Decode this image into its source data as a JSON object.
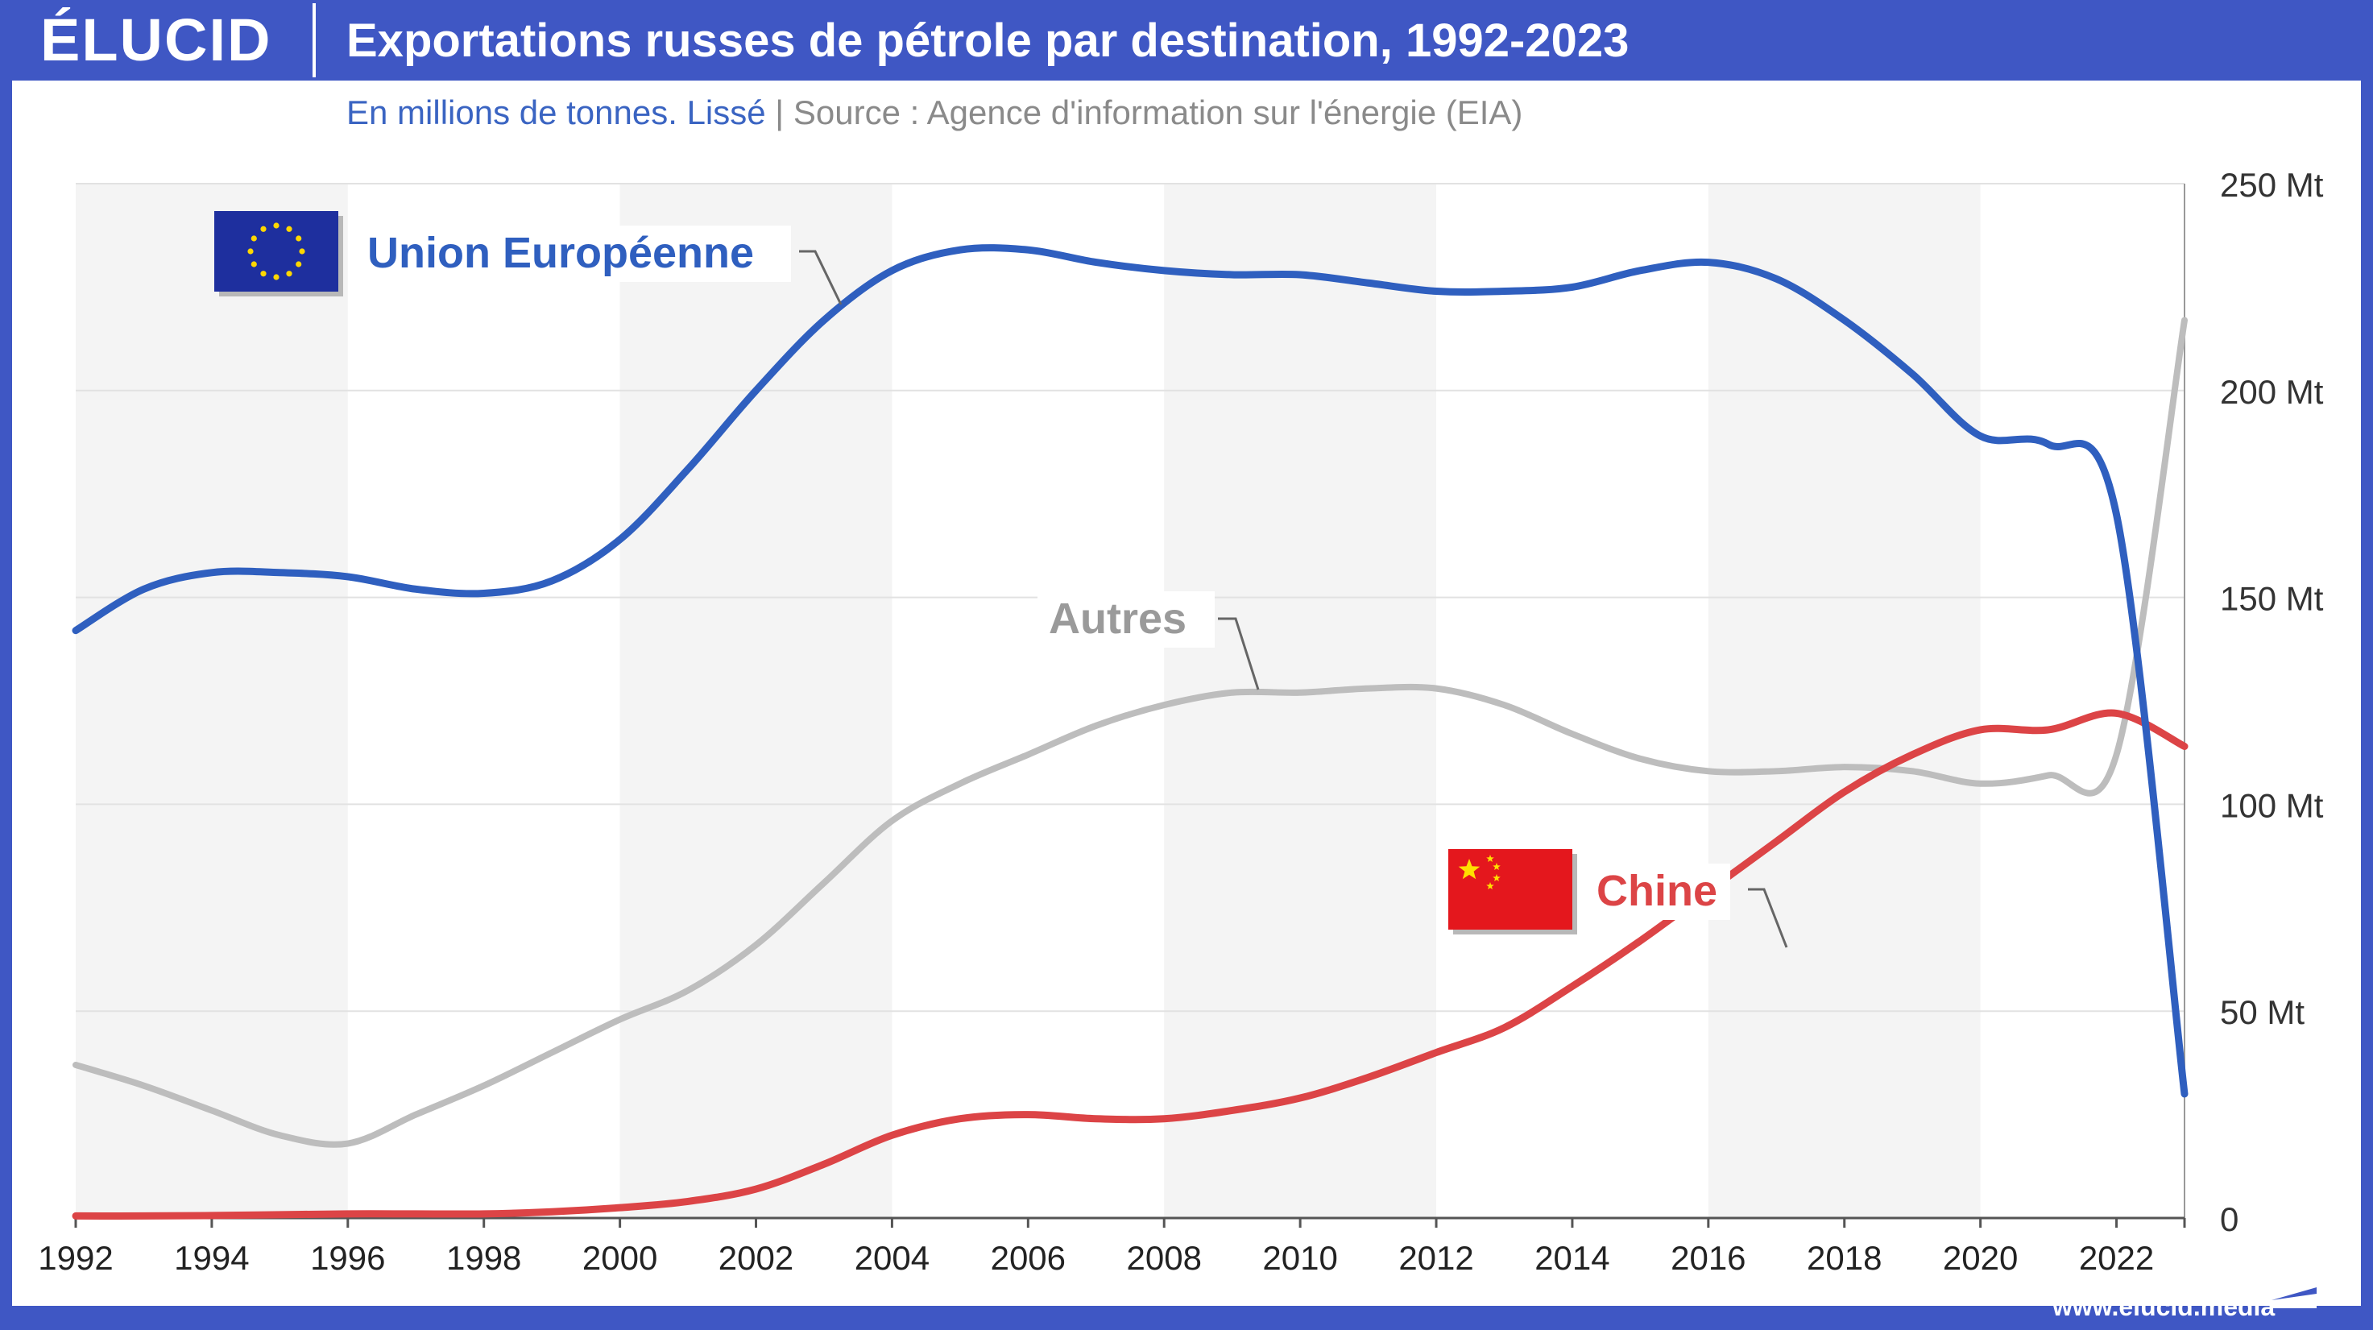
{
  "header": {
    "logo": "ÉLUCID",
    "title": "Exportations russes de pétrole par destination, 1992-2023",
    "subtitle_units": "En millions de tonnes. Lissé",
    "subtitle_sep": "|",
    "subtitle_source": "Source : Agence d'information sur l'énergie (EIA)"
  },
  "footer": {
    "url": "www.elucid.media"
  },
  "colors": {
    "background": "#3f57c4",
    "eu": "#2f5fbf",
    "china": "#dc4446",
    "others": "#bdbdbd",
    "band": "#f4f4f4"
  },
  "labels": {
    "eu": "Union Européenne",
    "china": "Chine",
    "others": "Autres"
  },
  "icons": {
    "eu_flag": "eu-flag-icon",
    "china_flag": "china-flag-icon",
    "logo_mark": "elucid-arrow-icon"
  },
  "chart_data": {
    "type": "line",
    "title": "Exportations russes de pétrole par destination, 1992-2023",
    "ylabel": "",
    "xlabel": "",
    "xlim": [
      1992,
      2023
    ],
    "ylim": [
      0,
      250
    ],
    "x_ticks": [
      "1992",
      "1994",
      "1996",
      "1998",
      "2000",
      "2002",
      "2004",
      "2006",
      "2008",
      "2010",
      "2012",
      "2014",
      "2016",
      "2018",
      "2020",
      "2022"
    ],
    "y_ticks": [
      "0",
      "50 Mt",
      "100 Mt",
      "150 Mt",
      "200 Mt",
      "250 Mt"
    ],
    "y_tick_values": [
      0,
      50,
      100,
      150,
      200,
      250
    ],
    "grid": "horizontal",
    "alternating_bands": true,
    "legend": "inline labels",
    "x": [
      1992,
      1993,
      1994,
      1995,
      1996,
      1997,
      1998,
      1999,
      2000,
      2001,
      2002,
      2003,
      2004,
      2005,
      2006,
      2007,
      2008,
      2009,
      2010,
      2011,
      2012,
      2013,
      2014,
      2015,
      2016,
      2017,
      2018,
      2019,
      2020,
      2021,
      2022,
      2023
    ],
    "series": [
      {
        "name": "Union Européenne",
        "color": "#2f5fbf",
        "values": [
          142,
          152,
          156,
          156,
          155,
          152,
          151,
          154,
          164,
          181,
          200,
          217,
          229,
          234,
          234,
          231,
          229,
          228,
          228,
          226,
          224,
          224,
          225,
          229,
          231,
          227,
          217,
          204,
          189,
          187,
          170,
          30
        ]
      },
      {
        "name": "Autres",
        "color": "#bdbdbd",
        "values": [
          37,
          32,
          26,
          20,
          18,
          25,
          32,
          40,
          48,
          55,
          66,
          81,
          96,
          105,
          112,
          119,
          124,
          127,
          127,
          128,
          128,
          124,
          117,
          111,
          108,
          108,
          109,
          108,
          105,
          107,
          112,
          217
        ]
      },
      {
        "name": "Chine",
        "color": "#dc4446",
        "values": [
          0.5,
          0.5,
          0.6,
          0.8,
          1,
          1,
          1,
          1.5,
          2.5,
          4,
          7,
          13,
          20,
          24,
          25,
          24,
          24,
          26,
          29,
          34,
          40,
          46,
          56,
          67,
          79,
          91,
          103,
          112,
          118,
          118,
          122,
          114
        ]
      }
    ]
  }
}
